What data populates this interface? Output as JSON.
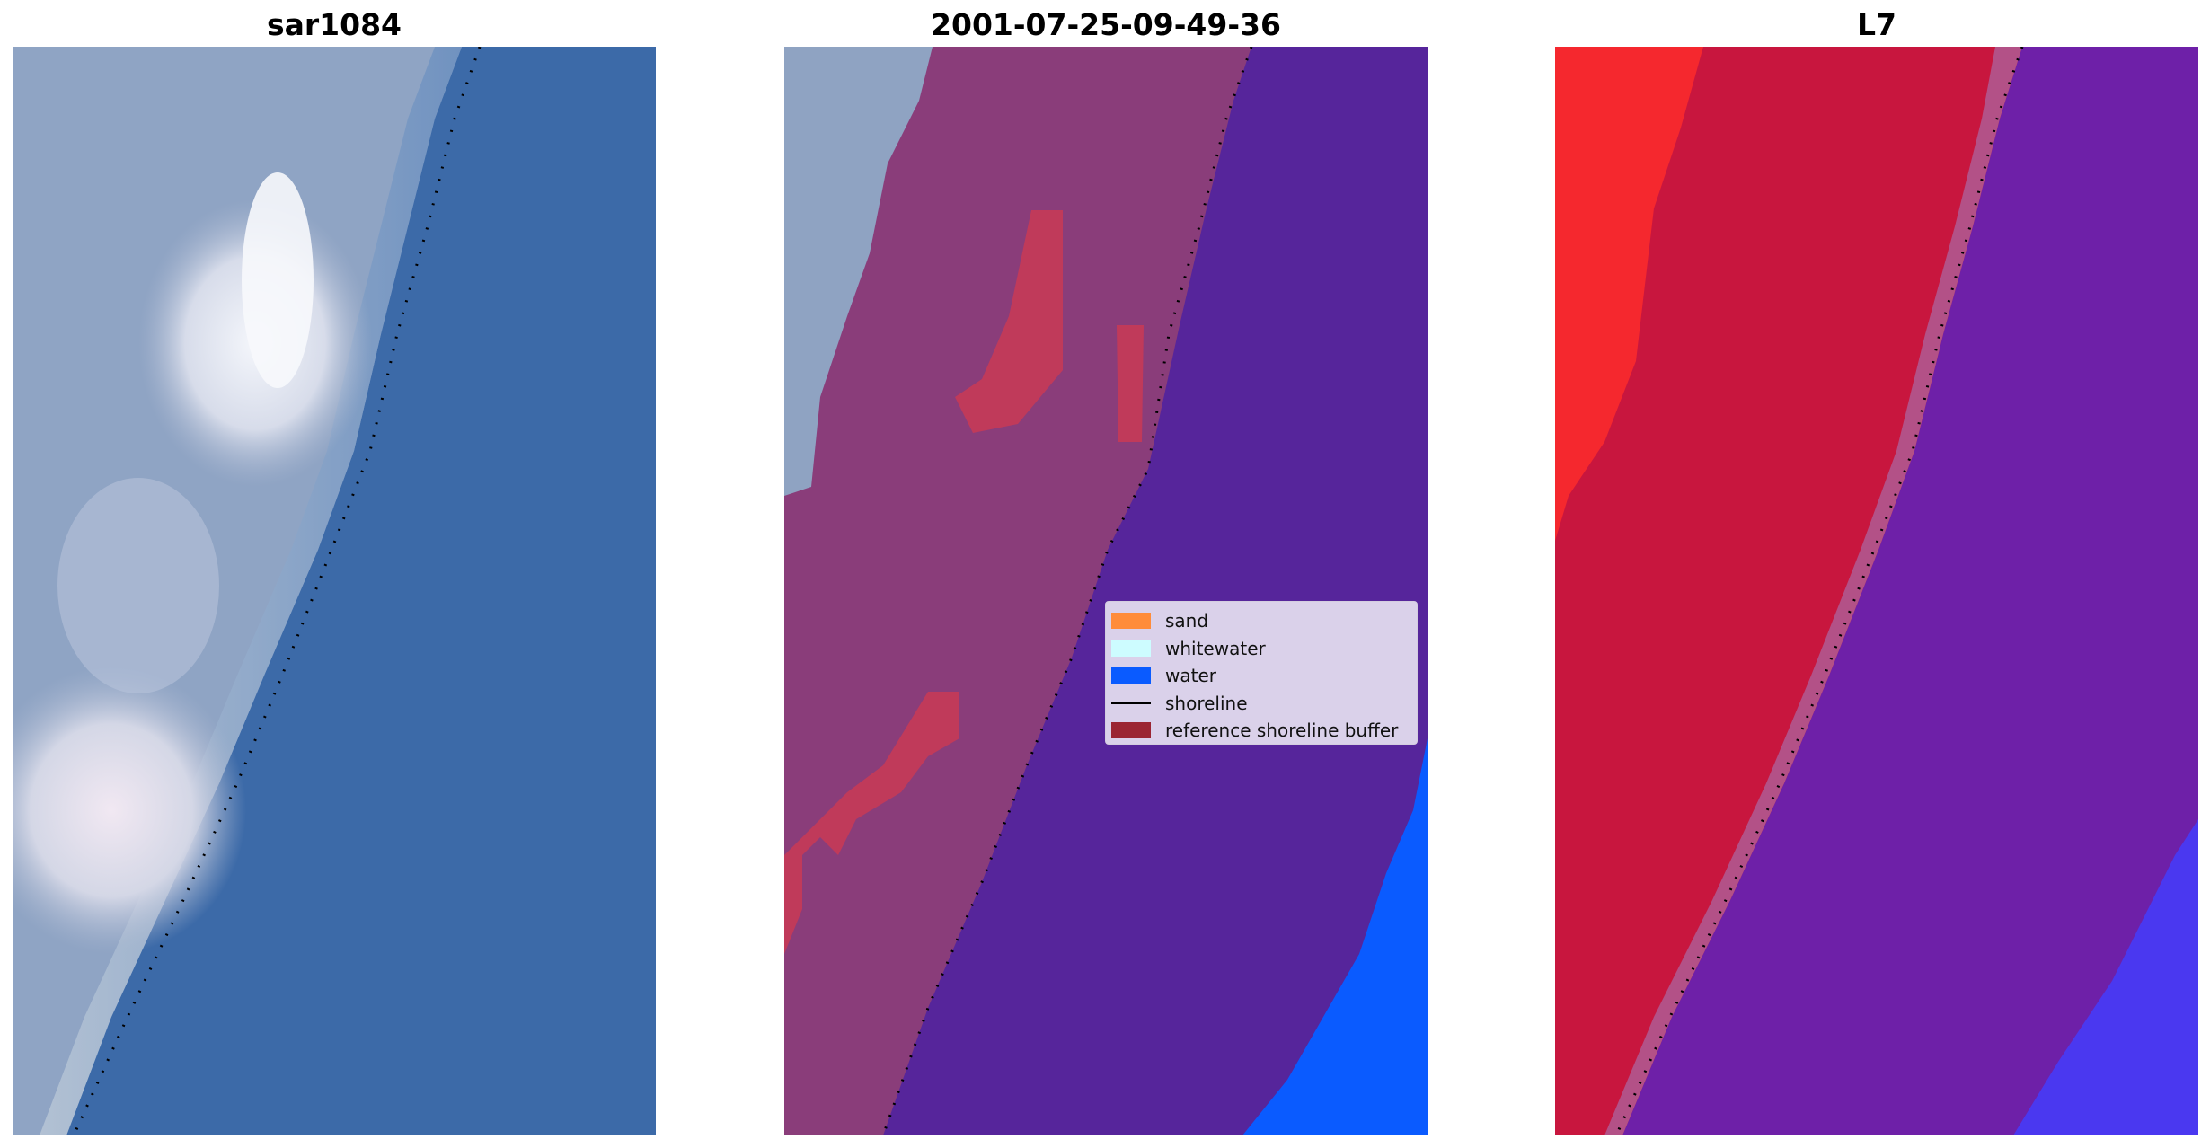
{
  "panels": [
    {
      "title": "sar1084"
    },
    {
      "title": "2001-07-25-09-49-36"
    },
    {
      "title": "L7"
    }
  ],
  "legend": {
    "items": [
      {
        "label": "sand",
        "color": "#ff8c3a",
        "kind": "patch"
      },
      {
        "label": "whitewater",
        "color": "#cdfcff",
        "kind": "patch"
      },
      {
        "label": "water",
        "color": "#0a5bff",
        "kind": "patch"
      },
      {
        "label": "shoreline",
        "color": "#000000",
        "kind": "line"
      },
      {
        "label": "reference shoreline buffer",
        "color": "#9b2532",
        "kind": "patch"
      }
    ]
  },
  "colors": {
    "rgb_ocean": "#3c6aa8",
    "rgb_land": "#8fa4c4",
    "classified_water": "#56259b",
    "classified_land": "#8a3d7a",
    "classified_buffer": "#c03a5a",
    "water_blue": "#0a5bff",
    "false_color_land": "#c8163e",
    "false_color_land_bright": "#f5282e",
    "false_color_water": "#6e20a8",
    "false_color_deep": "#4a38f0"
  }
}
